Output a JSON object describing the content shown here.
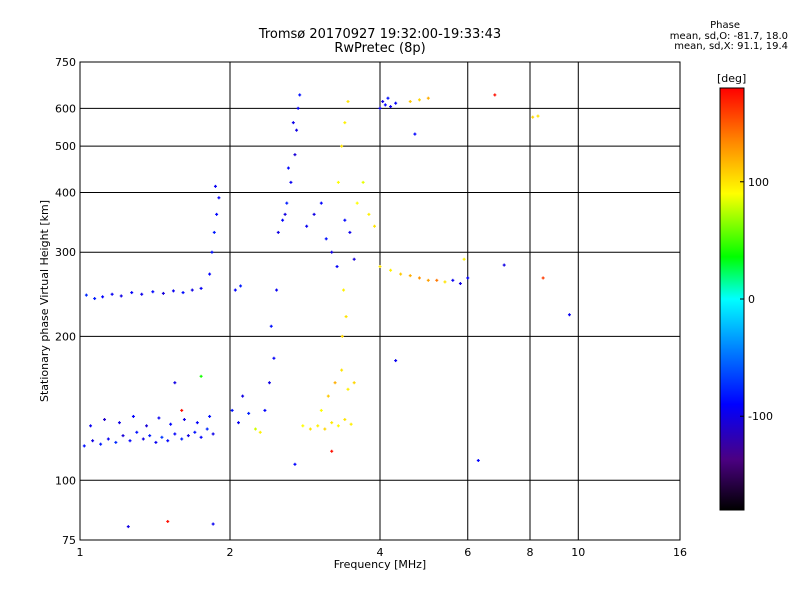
{
  "header": {
    "title_line1": "Tromsø 20170927 19:32:00-19:33:43",
    "title_line2": "RwPretec (8p)"
  },
  "phase_box": {
    "title": "Phase",
    "line_o": "mean, sd,O: -81.7, 18.0",
    "line_x": "mean, sd,X:  91.1, 19.4"
  },
  "colorbar": {
    "unit_label": "[deg]",
    "ticks": [
      {
        "value": 100,
        "label": "100"
      },
      {
        "value": 0,
        "label": "0"
      },
      {
        "value": -100,
        "label": "-100"
      }
    ],
    "range": [
      -180,
      180
    ],
    "colors": [
      "#000000",
      "#4b0082",
      "#0000ff",
      "#0080ff",
      "#00ffff",
      "#00ff00",
      "#ffff00",
      "#ff8000",
      "#ff0000"
    ]
  },
  "chart_data": {
    "type": "scatter",
    "title": "Tromsø 20170927 19:32:00-19:33:43",
    "subtitle": "RwPretec (8p)",
    "xlabel": "Frequency [MHz]",
    "ylabel": "Stationary phase Virtual Height [km]",
    "x_scale": "log",
    "y_scale": "log",
    "xlim": [
      1,
      16
    ],
    "ylim": [
      75,
      750
    ],
    "x_ticks": [
      {
        "value": 1,
        "label": "1"
      },
      {
        "value": 2,
        "label": "2"
      },
      {
        "value": 4,
        "label": "4"
      },
      {
        "value": 6,
        "label": "6"
      },
      {
        "value": 8,
        "label": "8"
      },
      {
        "value": 10,
        "label": "10"
      },
      {
        "value": 16,
        "label": "16"
      }
    ],
    "y_ticks": [
      {
        "value": 75,
        "label": "75"
      },
      {
        "value": 100,
        "label": "100"
      },
      {
        "value": 200,
        "label": "200"
      },
      {
        "value": 300,
        "label": "300"
      },
      {
        "value": 400,
        "label": "400"
      },
      {
        "value": 500,
        "label": "500"
      },
      {
        "value": 600,
        "label": "600"
      },
      {
        "value": 750,
        "label": "750"
      }
    ],
    "grid": true,
    "color_by": "phase [deg]",
    "points": [
      {
        "f": 1.02,
        "h": 118,
        "p": -85
      },
      {
        "f": 1.06,
        "h": 121,
        "p": -100
      },
      {
        "f": 1.1,
        "h": 119,
        "p": -80
      },
      {
        "f": 1.14,
        "h": 122,
        "p": -95
      },
      {
        "f": 1.18,
        "h": 120,
        "p": -75
      },
      {
        "f": 1.22,
        "h": 124,
        "p": -105
      },
      {
        "f": 1.26,
        "h": 121,
        "p": -90
      },
      {
        "f": 1.3,
        "h": 126,
        "p": -85
      },
      {
        "f": 1.34,
        "h": 122,
        "p": -100
      },
      {
        "f": 1.38,
        "h": 124,
        "p": -80
      },
      {
        "f": 1.42,
        "h": 120,
        "p": -95
      },
      {
        "f": 1.46,
        "h": 123,
        "p": -70
      },
      {
        "f": 1.5,
        "h": 121,
        "p": -88
      },
      {
        "f": 1.55,
        "h": 125,
        "p": -92
      },
      {
        "f": 1.6,
        "h": 122,
        "p": -78
      },
      {
        "f": 1.65,
        "h": 124,
        "p": -102
      },
      {
        "f": 1.7,
        "h": 126,
        "p": -84
      },
      {
        "f": 1.75,
        "h": 123,
        "p": -90
      },
      {
        "f": 1.8,
        "h": 128,
        "p": -76
      },
      {
        "f": 1.85,
        "h": 125,
        "p": -98
      },
      {
        "f": 1.05,
        "h": 130,
        "p": -95
      },
      {
        "f": 1.12,
        "h": 134,
        "p": -110
      },
      {
        "f": 1.2,
        "h": 132,
        "p": -100
      },
      {
        "f": 1.28,
        "h": 136,
        "p": -90
      },
      {
        "f": 1.36,
        "h": 130,
        "p": -105
      },
      {
        "f": 1.44,
        "h": 135,
        "p": -95
      },
      {
        "f": 1.52,
        "h": 131,
        "p": -88
      },
      {
        "f": 1.62,
        "h": 134,
        "p": -100
      },
      {
        "f": 1.72,
        "h": 132,
        "p": -92
      },
      {
        "f": 1.82,
        "h": 136,
        "p": -85
      },
      {
        "f": 1.03,
        "h": 244,
        "p": -75
      },
      {
        "f": 1.07,
        "h": 240,
        "p": -80
      },
      {
        "f": 1.11,
        "h": 242,
        "p": -90
      },
      {
        "f": 1.16,
        "h": 245,
        "p": -95
      },
      {
        "f": 1.21,
        "h": 243,
        "p": -100
      },
      {
        "f": 1.27,
        "h": 247,
        "p": -92
      },
      {
        "f": 1.33,
        "h": 245,
        "p": -98
      },
      {
        "f": 1.4,
        "h": 248,
        "p": -88
      },
      {
        "f": 1.47,
        "h": 246,
        "p": -104
      },
      {
        "f": 1.54,
        "h": 249,
        "p": -96
      },
      {
        "f": 1.61,
        "h": 247,
        "p": -86
      },
      {
        "f": 1.68,
        "h": 250,
        "p": -100
      },
      {
        "f": 1.75,
        "h": 252,
        "p": -94
      },
      {
        "f": 1.82,
        "h": 270,
        "p": -90
      },
      {
        "f": 1.84,
        "h": 300,
        "p": -85
      },
      {
        "f": 1.86,
        "h": 330,
        "p": -80
      },
      {
        "f": 1.88,
        "h": 360,
        "p": -88
      },
      {
        "f": 1.9,
        "h": 390,
        "p": -92
      },
      {
        "f": 1.87,
        "h": 412,
        "p": -95
      },
      {
        "f": 2.05,
        "h": 250,
        "p": -90
      },
      {
        "f": 2.1,
        "h": 255,
        "p": -80
      },
      {
        "f": 2.02,
        "h": 140,
        "p": -85
      },
      {
        "f": 2.08,
        "h": 132,
        "p": -95
      },
      {
        "f": 2.12,
        "h": 150,
        "p": -100
      },
      {
        "f": 2.18,
        "h": 138,
        "p": -78
      },
      {
        "f": 2.25,
        "h": 128,
        "p": 80
      },
      {
        "f": 2.3,
        "h": 126,
        "p": 95
      },
      {
        "f": 2.35,
        "h": 140,
        "p": -90
      },
      {
        "f": 2.4,
        "h": 160,
        "p": -100
      },
      {
        "f": 2.45,
        "h": 180,
        "p": -92
      },
      {
        "f": 2.42,
        "h": 210,
        "p": -85
      },
      {
        "f": 2.48,
        "h": 250,
        "p": -95
      },
      {
        "f": 2.5,
        "h": 330,
        "p": -100
      },
      {
        "f": 2.55,
        "h": 350,
        "p": -90
      },
      {
        "f": 2.6,
        "h": 380,
        "p": -80
      },
      {
        "f": 2.65,
        "h": 420,
        "p": -95
      },
      {
        "f": 2.7,
        "h": 480,
        "p": -105
      },
      {
        "f": 2.72,
        "h": 540,
        "p": -100
      },
      {
        "f": 2.74,
        "h": 600,
        "p": -92
      },
      {
        "f": 2.76,
        "h": 640,
        "p": -85
      },
      {
        "f": 2.68,
        "h": 560,
        "p": -98
      },
      {
        "f": 2.62,
        "h": 450,
        "p": -88
      },
      {
        "f": 2.58,
        "h": 360,
        "p": -102
      },
      {
        "f": 2.8,
        "h": 130,
        "p": 90
      },
      {
        "f": 2.9,
        "h": 128,
        "p": 100
      },
      {
        "f": 3.0,
        "h": 130,
        "p": 95
      },
      {
        "f": 3.1,
        "h": 128,
        "p": 105
      },
      {
        "f": 3.2,
        "h": 132,
        "p": 98
      },
      {
        "f": 3.3,
        "h": 130,
        "p": 92
      },
      {
        "f": 3.4,
        "h": 134,
        "p": 100
      },
      {
        "f": 3.5,
        "h": 131,
        "p": 96
      },
      {
        "f": 3.05,
        "h": 140,
        "p": 90
      },
      {
        "f": 3.15,
        "h": 150,
        "p": 110
      },
      {
        "f": 3.25,
        "h": 160,
        "p": 120
      },
      {
        "f": 3.35,
        "h": 170,
        "p": 100
      },
      {
        "f": 3.45,
        "h": 155,
        "p": 95
      },
      {
        "f": 3.55,
        "h": 160,
        "p": 105
      },
      {
        "f": 2.85,
        "h": 340,
        "p": -95
      },
      {
        "f": 2.95,
        "h": 360,
        "p": -100
      },
      {
        "f": 3.05,
        "h": 380,
        "p": -90
      },
      {
        "f": 3.12,
        "h": 320,
        "p": -85
      },
      {
        "f": 3.2,
        "h": 300,
        "p": -100
      },
      {
        "f": 3.28,
        "h": 280,
        "p": -92
      },
      {
        "f": 3.4,
        "h": 350,
        "p": -88
      },
      {
        "f": 3.48,
        "h": 330,
        "p": -98
      },
      {
        "f": 3.55,
        "h": 290,
        "p": -104
      },
      {
        "f": 3.3,
        "h": 420,
        "p": 90
      },
      {
        "f": 3.35,
        "h": 500,
        "p": 100
      },
      {
        "f": 3.4,
        "h": 560,
        "p": 95
      },
      {
        "f": 3.45,
        "h": 620,
        "p": 100
      },
      {
        "f": 3.38,
        "h": 250,
        "p": 95
      },
      {
        "f": 3.42,
        "h": 220,
        "p": 100
      },
      {
        "f": 3.36,
        "h": 200,
        "p": 105
      },
      {
        "f": 3.6,
        "h": 380,
        "p": 90
      },
      {
        "f": 3.7,
        "h": 420,
        "p": 85
      },
      {
        "f": 3.8,
        "h": 360,
        "p": 95
      },
      {
        "f": 3.9,
        "h": 340,
        "p": 100
      },
      {
        "f": 4.0,
        "h": 600,
        "p": -95
      },
      {
        "f": 4.05,
        "h": 620,
        "p": -100
      },
      {
        "f": 4.1,
        "h": 610,
        "p": -90
      },
      {
        "f": 4.15,
        "h": 630,
        "p": -85
      },
      {
        "f": 4.2,
        "h": 605,
        "p": -98
      },
      {
        "f": 4.3,
        "h": 615,
        "p": -92
      },
      {
        "f": 4.6,
        "h": 620,
        "p": 110
      },
      {
        "f": 4.8,
        "h": 625,
        "p": 105
      },
      {
        "f": 5.0,
        "h": 630,
        "p": 120
      },
      {
        "f": 4.0,
        "h": 280,
        "p": 100
      },
      {
        "f": 4.2,
        "h": 275,
        "p": 95
      },
      {
        "f": 4.4,
        "h": 270,
        "p": 110
      },
      {
        "f": 4.6,
        "h": 268,
        "p": 120
      },
      {
        "f": 4.8,
        "h": 265,
        "p": 130
      },
      {
        "f": 5.0,
        "h": 262,
        "p": 125
      },
      {
        "f": 5.2,
        "h": 262,
        "p": 140
      },
      {
        "f": 5.4,
        "h": 260,
        "p": 100
      },
      {
        "f": 5.6,
        "h": 262,
        "p": -95
      },
      {
        "f": 5.8,
        "h": 258,
        "p": -100
      },
      {
        "f": 6.0,
        "h": 265,
        "p": -90
      },
      {
        "f": 5.9,
        "h": 290,
        "p": 95
      },
      {
        "f": 6.8,
        "h": 640,
        "p": 175
      },
      {
        "f": 8.1,
        "h": 575,
        "p": 105
      },
      {
        "f": 8.3,
        "h": 578,
        "p": 100
      },
      {
        "f": 8.5,
        "h": 265,
        "p": 160
      },
      {
        "f": 9.6,
        "h": 222,
        "p": -95
      },
      {
        "f": 7.1,
        "h": 282,
        "p": -100
      },
      {
        "f": 6.3,
        "h": 110,
        "p": -90
      },
      {
        "f": 4.3,
        "h": 178,
        "p": -95
      },
      {
        "f": 4.7,
        "h": 530,
        "p": -90
      },
      {
        "f": 1.25,
        "h": 80,
        "p": -100
      },
      {
        "f": 1.5,
        "h": 82,
        "p": 175
      },
      {
        "f": 1.85,
        "h": 81,
        "p": -95
      },
      {
        "f": 1.6,
        "h": 140,
        "p": 175
      },
      {
        "f": 1.55,
        "h": 160,
        "p": -100
      },
      {
        "f": 1.75,
        "h": 165,
        "p": 40
      },
      {
        "f": 2.7,
        "h": 108,
        "p": -90
      },
      {
        "f": 3.2,
        "h": 115,
        "p": 175
      }
    ]
  }
}
